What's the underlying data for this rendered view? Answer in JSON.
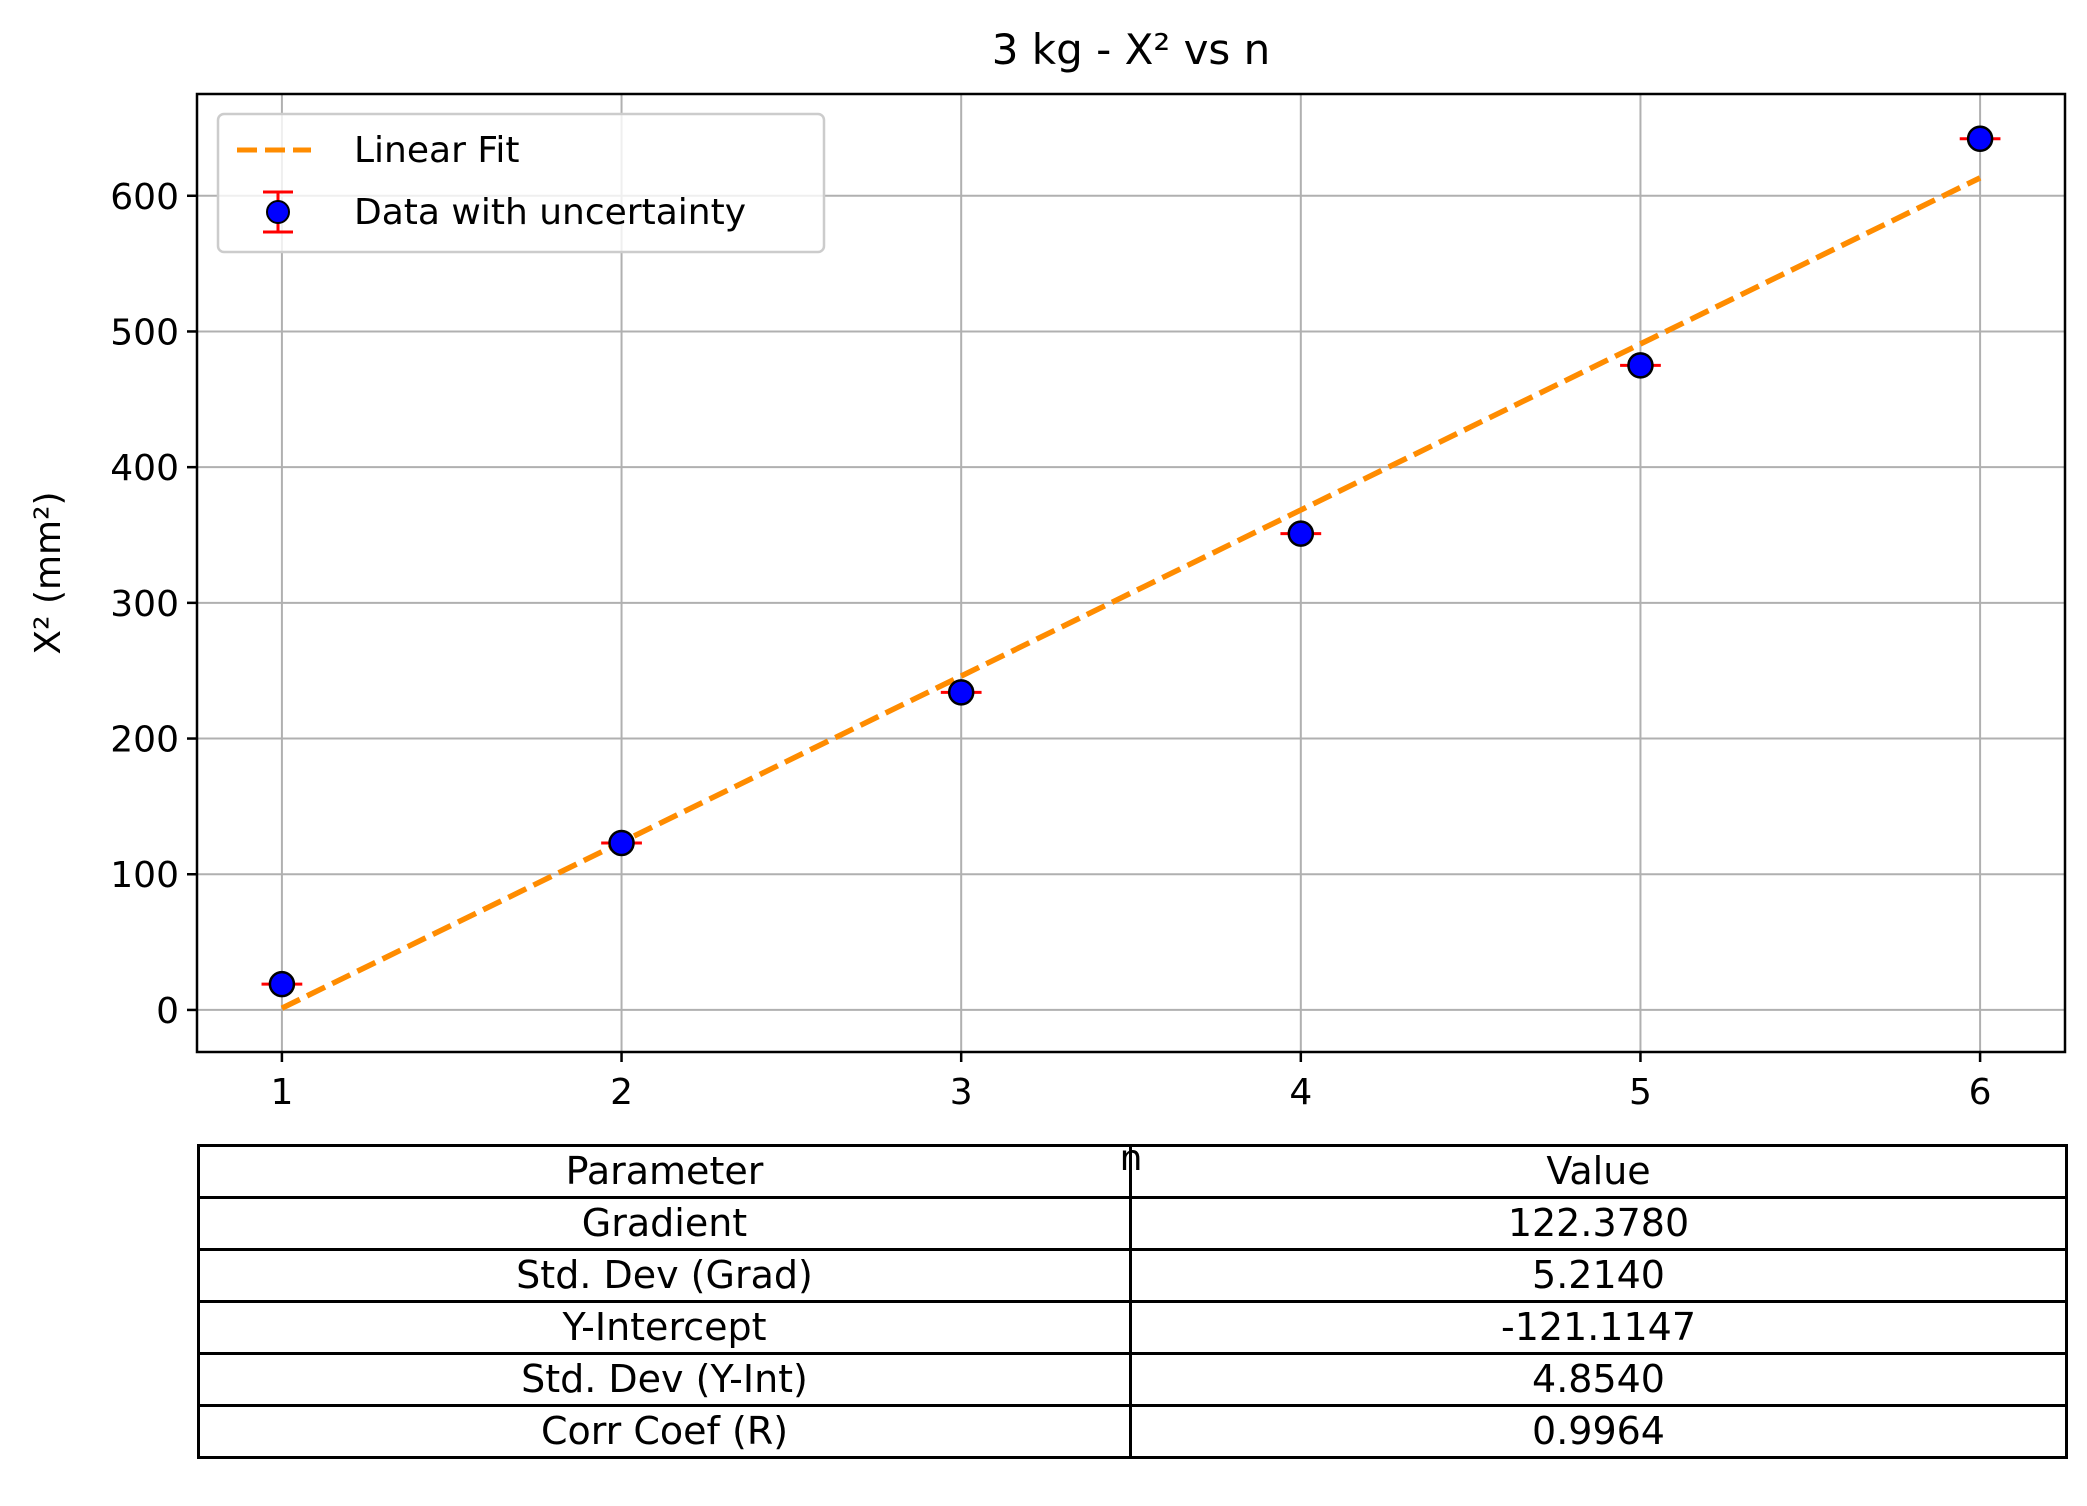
{
  "chart_data": {
    "type": "scatter",
    "title": "3 kg - X² vs n",
    "xlabel": "n",
    "ylabel": "X² (mm²)",
    "xlim": [
      0.75,
      6.25
    ],
    "ylim": [
      -31,
      675
    ],
    "xticks": [
      1,
      2,
      3,
      4,
      5,
      6
    ],
    "yticks": [
      0,
      100,
      200,
      300,
      400,
      500,
      600
    ],
    "grid": true,
    "legend_position": "top-left",
    "series": [
      {
        "name": "Data with uncertainty",
        "kind": "errorbar",
        "x": [
          1,
          2,
          3,
          4,
          5,
          6
        ],
        "y": [
          19,
          123,
          234,
          351,
          475,
          642
        ],
        "xerr": 0.06,
        "marker_color": "#0000ff",
        "marker_edge": "#000000",
        "error_color": "#ff0000"
      },
      {
        "name": "Linear Fit",
        "kind": "line",
        "style": "dashed",
        "color": "#ff8c00",
        "x": [
          1,
          6
        ],
        "y": [
          1.3,
          613.2
        ]
      }
    ]
  },
  "table": {
    "headers": [
      "Parameter",
      "Value"
    ],
    "rows": [
      [
        "Gradient",
        "122.3780"
      ],
      [
        "Std. Dev (Grad)",
        "5.2140"
      ],
      [
        "Y-Intercept",
        "-121.1147"
      ],
      [
        "Std. Dev (Y-Int)",
        "4.8540"
      ],
      [
        "Corr Coef (R)",
        "0.9964"
      ]
    ]
  }
}
